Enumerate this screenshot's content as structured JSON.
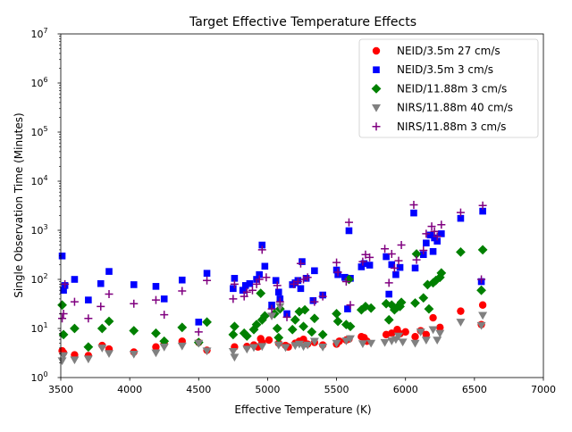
{
  "chart_data": {
    "type": "scatter",
    "title": "Target Effective Temperature Effects",
    "xlabel": "Effective Temperature (K)",
    "ylabel": "Single Observation Time (Minutes)",
    "xlim": [
      3500,
      7000
    ],
    "ylim": [
      1,
      10000000
    ],
    "yscale": "log",
    "x_ticks": [
      "3500",
      "4000",
      "4500",
      "5000",
      "5500",
      "6000",
      "6500",
      "7000"
    ],
    "y_ticks": [
      {
        "base": "10",
        "exp": "0",
        "value": 1
      },
      {
        "base": "10",
        "exp": "1",
        "value": 10
      },
      {
        "base": "10",
        "exp": "2",
        "value": 100
      },
      {
        "base": "10",
        "exp": "3",
        "value": 1000
      },
      {
        "base": "10",
        "exp": "4",
        "value": 10000
      },
      {
        "base": "10",
        "exp": "5",
        "value": 100000
      },
      {
        "base": "10",
        "exp": "6",
        "value": 1000000
      },
      {
        "base": "10",
        "exp": "7",
        "value": 10000000
      }
    ],
    "legend_position": "top-right",
    "series": [
      {
        "name": "NEID/3.5m 27 cm/s",
        "marker": "circle",
        "color": "#ff0000",
        "points": [
          [
            3510,
            3.5
          ],
          [
            3520,
            3.2
          ],
          [
            3600,
            2.9
          ],
          [
            3700,
            2.8
          ],
          [
            3800,
            4.5
          ],
          [
            3850,
            3.8
          ],
          [
            4030,
            3.3
          ],
          [
            4190,
            4.2
          ],
          [
            4250,
            4.8
          ],
          [
            4380,
            5.5
          ],
          [
            4500,
            5.2
          ],
          [
            4560,
            3.6
          ],
          [
            4760,
            4.2
          ],
          [
            4850,
            4.3
          ],
          [
            4900,
            4.6
          ],
          [
            4930,
            4.2
          ],
          [
            4950,
            6.2
          ],
          [
            4960,
            5.2
          ],
          [
            5010,
            5.8
          ],
          [
            5080,
            5.0
          ],
          [
            5130,
            4.5
          ],
          [
            5150,
            4.2
          ],
          [
            5200,
            5.0
          ],
          [
            5230,
            5.5
          ],
          [
            5260,
            6.0
          ],
          [
            5290,
            4.8
          ],
          [
            5340,
            5.2
          ],
          [
            5400,
            4.6
          ],
          [
            5500,
            4.8
          ],
          [
            5520,
            5.5
          ],
          [
            5570,
            5.8
          ],
          [
            5590,
            6.1
          ],
          [
            5680,
            6.8
          ],
          [
            5700,
            6.5
          ],
          [
            5720,
            5.5
          ],
          [
            5860,
            7.5
          ],
          [
            5900,
            8.0
          ],
          [
            5940,
            9.5
          ],
          [
            5960,
            7.8
          ],
          [
            6000,
            8.5
          ],
          [
            6070,
            6.8
          ],
          [
            6110,
            9.0
          ],
          [
            6150,
            7.5
          ],
          [
            6200,
            16.5
          ],
          [
            6250,
            10.5
          ],
          [
            6400,
            22.5
          ],
          [
            6550,
            12.0
          ],
          [
            6560,
            30.0
          ]
        ]
      },
      {
        "name": "NEID/3.5m 3 cm/s",
        "marker": "square",
        "color": "#0000ff",
        "points": [
          [
            3510,
            300
          ],
          [
            3520,
            60
          ],
          [
            3530,
            75
          ],
          [
            3600,
            100
          ],
          [
            3700,
            38
          ],
          [
            3790,
            82
          ],
          [
            3850,
            145
          ],
          [
            4030,
            78
          ],
          [
            4190,
            72
          ],
          [
            4250,
            40
          ],
          [
            4380,
            97
          ],
          [
            4500,
            13.5
          ],
          [
            4560,
            133
          ],
          [
            4750,
            65
          ],
          [
            4760,
            105
          ],
          [
            4820,
            60
          ],
          [
            4840,
            75
          ],
          [
            4870,
            82
          ],
          [
            4920,
            100
          ],
          [
            4940,
            125
          ],
          [
            4960,
            500
          ],
          [
            4980,
            185
          ],
          [
            5030,
            30
          ],
          [
            5060,
            95
          ],
          [
            5080,
            55
          ],
          [
            5090,
            40
          ],
          [
            5140,
            20
          ],
          [
            5180,
            78
          ],
          [
            5200,
            85
          ],
          [
            5220,
            95
          ],
          [
            5240,
            65
          ],
          [
            5250,
            230
          ],
          [
            5280,
            105
          ],
          [
            5330,
            37
          ],
          [
            5340,
            150
          ],
          [
            5400,
            48
          ],
          [
            5500,
            155
          ],
          [
            5510,
            125
          ],
          [
            5560,
            110
          ],
          [
            5580,
            25
          ],
          [
            5590,
            980
          ],
          [
            5600,
            105
          ],
          [
            5680,
            180
          ],
          [
            5700,
            210
          ],
          [
            5740,
            195
          ],
          [
            5860,
            290
          ],
          [
            5880,
            50
          ],
          [
            5900,
            200
          ],
          [
            5930,
            125
          ],
          [
            5960,
            175
          ],
          [
            6060,
            2250
          ],
          [
            6070,
            170
          ],
          [
            6130,
            320
          ],
          [
            6150,
            550
          ],
          [
            6180,
            800
          ],
          [
            6200,
            370
          ],
          [
            6210,
            700
          ],
          [
            6230,
            600
          ],
          [
            6260,
            850
          ],
          [
            6400,
            1750
          ],
          [
            6550,
            90
          ],
          [
            6560,
            2450
          ]
        ]
      },
      {
        "name": "NEID/11.88m 3 cm/s",
        "marker": "diamond",
        "color": "#008000",
        "points": [
          [
            3510,
            30
          ],
          [
            3520,
            7.5
          ],
          [
            3600,
            10
          ],
          [
            3700,
            4.2
          ],
          [
            3800,
            10
          ],
          [
            3850,
            14
          ],
          [
            4030,
            9
          ],
          [
            4190,
            8
          ],
          [
            4250,
            5.5
          ],
          [
            4380,
            10.5
          ],
          [
            4500,
            5.2
          ],
          [
            4560,
            13.5
          ],
          [
            4750,
            7.5
          ],
          [
            4760,
            11
          ],
          [
            4830,
            8
          ],
          [
            4850,
            7
          ],
          [
            4900,
            9.5
          ],
          [
            4920,
            12
          ],
          [
            4950,
            52
          ],
          [
            4960,
            15
          ],
          [
            4980,
            18
          ],
          [
            5050,
            20
          ],
          [
            5070,
            10
          ],
          [
            5080,
            6.5
          ],
          [
            5090,
            25
          ],
          [
            5180,
            9.5
          ],
          [
            5200,
            15
          ],
          [
            5230,
            22
          ],
          [
            5260,
            11
          ],
          [
            5270,
            24
          ],
          [
            5320,
            8.5
          ],
          [
            5340,
            16
          ],
          [
            5400,
            7.5
          ],
          [
            5500,
            20
          ],
          [
            5510,
            14
          ],
          [
            5570,
            12
          ],
          [
            5590,
            100
          ],
          [
            5600,
            11
          ],
          [
            5680,
            24
          ],
          [
            5710,
            28
          ],
          [
            5750,
            26
          ],
          [
            5860,
            32
          ],
          [
            5880,
            15
          ],
          [
            5900,
            30
          ],
          [
            5920,
            24
          ],
          [
            5940,
            27
          ],
          [
            5960,
            28
          ],
          [
            5970,
            34
          ],
          [
            6070,
            33
          ],
          [
            6080,
            330
          ],
          [
            6130,
            42
          ],
          [
            6160,
            78
          ],
          [
            6170,
            25
          ],
          [
            6200,
            85
          ],
          [
            6220,
            95
          ],
          [
            6250,
            110
          ],
          [
            6260,
            135
          ],
          [
            6400,
            360
          ],
          [
            6550,
            60
          ],
          [
            6560,
            400
          ]
        ]
      },
      {
        "name": "NIRS/11.88m 40 cm/s",
        "marker": "triangle-down",
        "color": "#808080",
        "points": [
          [
            3510,
            2.2
          ],
          [
            3520,
            2.8
          ],
          [
            3600,
            2.3
          ],
          [
            3700,
            2.4
          ],
          [
            3800,
            4.0
          ],
          [
            3850,
            3.1
          ],
          [
            4030,
            3.0
          ],
          [
            4190,
            3.2
          ],
          [
            4250,
            4.2
          ],
          [
            4380,
            4.4
          ],
          [
            4500,
            5.0
          ],
          [
            4560,
            3.5
          ],
          [
            4750,
            3.4
          ],
          [
            4760,
            2.6
          ],
          [
            4850,
            3.8
          ],
          [
            4900,
            4.1
          ],
          [
            4960,
            4.3
          ],
          [
            5030,
            18
          ],
          [
            5080,
            4.6
          ],
          [
            5090,
            28
          ],
          [
            5130,
            4.1
          ],
          [
            5200,
            4.5
          ],
          [
            5230,
            4.8
          ],
          [
            5260,
            4.3
          ],
          [
            5290,
            4.6
          ],
          [
            5340,
            5.5
          ],
          [
            5400,
            4.2
          ],
          [
            5500,
            5.0
          ],
          [
            5570,
            5.6
          ],
          [
            5600,
            6.2
          ],
          [
            5690,
            4.9
          ],
          [
            5750,
            5.0
          ],
          [
            5850,
            5.2
          ],
          [
            5900,
            5.6
          ],
          [
            5930,
            6.0
          ],
          [
            5950,
            7.0
          ],
          [
            5980,
            5.3
          ],
          [
            6070,
            5.0
          ],
          [
            6110,
            8.5
          ],
          [
            6150,
            5.8
          ],
          [
            6200,
            9.5
          ],
          [
            6230,
            5.8
          ],
          [
            6250,
            8.0
          ],
          [
            6400,
            13.5
          ],
          [
            6550,
            11.5
          ],
          [
            6560,
            18.5
          ]
        ]
      },
      {
        "name": "NIRS/11.88m 3 cm/s",
        "marker": "plus",
        "color": "#800080",
        "points": [
          [
            3510,
            16
          ],
          [
            3520,
            20
          ],
          [
            3530,
            80
          ],
          [
            3600,
            35
          ],
          [
            3700,
            16
          ],
          [
            3790,
            28
          ],
          [
            3850,
            50
          ],
          [
            4030,
            32
          ],
          [
            4190,
            38
          ],
          [
            4250,
            19
          ],
          [
            4380,
            58
          ],
          [
            4500,
            8.5
          ],
          [
            4560,
            95
          ],
          [
            4750,
            40
          ],
          [
            4760,
            80
          ],
          [
            4830,
            45
          ],
          [
            4850,
            55
          ],
          [
            4890,
            60
          ],
          [
            4920,
            80
          ],
          [
            4940,
            100
          ],
          [
            4960,
            400
          ],
          [
            4990,
            110
          ],
          [
            5030,
            25
          ],
          [
            5070,
            75
          ],
          [
            5090,
            35
          ],
          [
            5140,
            17
          ],
          [
            5190,
            80
          ],
          [
            5220,
            90
          ],
          [
            5240,
            210
          ],
          [
            5260,
            100
          ],
          [
            5290,
            110
          ],
          [
            5340,
            35
          ],
          [
            5400,
            45
          ],
          [
            5500,
            220
          ],
          [
            5510,
            140
          ],
          [
            5570,
            90
          ],
          [
            5590,
            1450
          ],
          [
            5600,
            30
          ],
          [
            5690,
            230
          ],
          [
            5710,
            320
          ],
          [
            5740,
            280
          ],
          [
            5850,
            420
          ],
          [
            5880,
            85
          ],
          [
            5900,
            330
          ],
          [
            5920,
            170
          ],
          [
            5950,
            240
          ],
          [
            5970,
            500
          ],
          [
            6060,
            3300
          ],
          [
            6080,
            250
          ],
          [
            6130,
            390
          ],
          [
            6150,
            850
          ],
          [
            6190,
            1200
          ],
          [
            6210,
            950
          ],
          [
            6230,
            750
          ],
          [
            6260,
            1300
          ],
          [
            6400,
            2300
          ],
          [
            6550,
            100
          ],
          [
            6560,
            3200
          ]
        ]
      }
    ]
  }
}
